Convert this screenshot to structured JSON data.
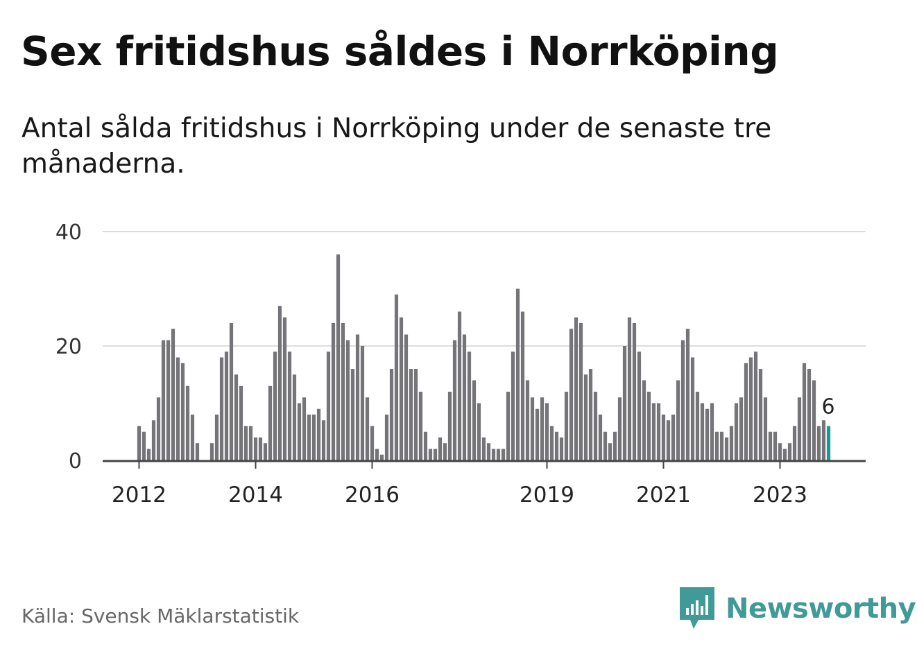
{
  "title": "Sex fritidshus såldes i Norrköping",
  "subtitle": "Antal sålda fritidshus i Norrköping under de senaste tre månaderna.",
  "source": "Källa: Svensk Mäklarstatistik",
  "brand": {
    "name": "Newsworthy",
    "icon": "newsworthy-logo-icon"
  },
  "colors": {
    "bar": "#747479",
    "highlight": "#159b96",
    "grid": "#dddddd",
    "axis": "#444444",
    "brand": "#409a97"
  },
  "chart_data": {
    "type": "bar",
    "title": "Sex fritidshus såldes i Norrköping",
    "xlabel": "",
    "ylabel": "",
    "ylim": [
      0,
      40
    ],
    "yticks": [
      0,
      20,
      40
    ],
    "grid": true,
    "start": "2012-01",
    "xticks": [
      {
        "label": "2012",
        "index": 0
      },
      {
        "label": "2014",
        "index": 24
      },
      {
        "label": "2016",
        "index": 48
      },
      {
        "label": "2019",
        "index": 84
      },
      {
        "label": "2021",
        "index": 108
      },
      {
        "label": "2023",
        "index": 132
      }
    ],
    "values": [
      6,
      5,
      2,
      7,
      11,
      21,
      21,
      23,
      18,
      17,
      13,
      8,
      3,
      0,
      0,
      3,
      8,
      18,
      19,
      24,
      15,
      13,
      6,
      6,
      4,
      4,
      3,
      13,
      19,
      27,
      25,
      19,
      15,
      10,
      11,
      8,
      8,
      9,
      7,
      19,
      24,
      36,
      24,
      21,
      16,
      22,
      20,
      11,
      6,
      2,
      1,
      8,
      16,
      29,
      25,
      22,
      16,
      16,
      12,
      5,
      2,
      2,
      4,
      3,
      12,
      21,
      26,
      22,
      19,
      14,
      10,
      4,
      3,
      2,
      2,
      2,
      12,
      19,
      30,
      26,
      14,
      11,
      9,
      11,
      10,
      6,
      5,
      4,
      12,
      23,
      25,
      24,
      15,
      16,
      12,
      8,
      5,
      3,
      5,
      11,
      20,
      25,
      24,
      19,
      14,
      12,
      10,
      10,
      8,
      7,
      8,
      14,
      21,
      23,
      18,
      12,
      10,
      9,
      10,
      5,
      5,
      4,
      6,
      10,
      11,
      17,
      18,
      19,
      16,
      11,
      5,
      5,
      3,
      2,
      3,
      6,
      11,
      17,
      16,
      14,
      6,
      7,
      6
    ],
    "highlight_last": true,
    "annotation": {
      "text": "6"
    }
  }
}
